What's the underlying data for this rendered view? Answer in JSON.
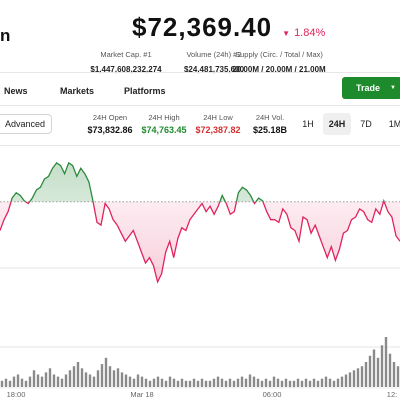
{
  "header": {
    "name_fragment": "n",
    "price": "$72,369.40",
    "change_percent": "1.84%",
    "change_direction": "down",
    "change_color": "#e0245e"
  },
  "stats": [
    {
      "label": "Market Cap. #1",
      "value": "$1,447,608,232,274"
    },
    {
      "label": "Volume (24h) #2",
      "value": "$24,481,735,600"
    },
    {
      "label": "Supply (Circ. / Total / Max)",
      "value": "20.00M / 20.00M / 21.00M"
    }
  ],
  "tabs": [
    "News",
    "Markets",
    "Platforms"
  ],
  "trade_button": {
    "label": "Trade",
    "color": "#1d8a2c"
  },
  "advanced_button": "Advanced",
  "ohl": [
    {
      "label": "24H Open",
      "value": "$73,832.86",
      "color": "#111111"
    },
    {
      "label": "24H High",
      "value": "$74,763.45",
      "color": "#1d8a2c"
    },
    {
      "label": "24H Low",
      "value": "$72,387.82",
      "color": "#d32f2f"
    },
    {
      "label": "24H Vol.",
      "value": "$25.18B",
      "color": "#111111"
    }
  ],
  "ranges": [
    {
      "label": "1H",
      "active": false
    },
    {
      "label": "24H",
      "active": true
    },
    {
      "label": "7D",
      "active": false
    },
    {
      "label": "1M",
      "active": false
    }
  ],
  "chart_data": {
    "type": "line",
    "baseline": 73832.86,
    "ylim": [
      72200,
      74900
    ],
    "up_color": "#2e8b3e",
    "down_color": "#e0245e",
    "x_tick_labels": [
      "18:00",
      "Mar 18",
      "06:00",
      "12:"
    ],
    "price": [
      73300,
      73500,
      73650,
      73900,
      74000,
      73950,
      73850,
      73800,
      73900,
      74050,
      74100,
      74250,
      74300,
      74450,
      74550,
      74500,
      74350,
      74550,
      74500,
      74300,
      74450,
      74350,
      74200,
      73850,
      73450,
      73400,
      73800,
      73700,
      73500,
      73400,
      73250,
      73100,
      73200,
      73300,
      73100,
      72900,
      72700,
      72800,
      72650,
      72350,
      72500,
      72900,
      73100,
      72800,
      73150,
      73350,
      73300,
      73500,
      73600,
      73700,
      73800,
      73650,
      73750,
      73600,
      73750,
      73950,
      73800,
      73600,
      73650,
      74000,
      74100,
      74050,
      73950,
      73800,
      73900,
      73850,
      73650,
      73500,
      73500,
      73450,
      73700,
      73600,
      73350,
      73300,
      73100,
      73550,
      73500,
      73250,
      73400,
      73200,
      73000,
      72800,
      73000,
      72750,
      72950,
      73250,
      73300,
      73500,
      73550,
      73700,
      73650,
      73500,
      73450,
      73700,
      73600,
      73850,
      73650,
      73550,
      73200,
      73100
    ],
    "volume": [
      3,
      4,
      3,
      5,
      6,
      4,
      3,
      5,
      8,
      6,
      5,
      7,
      9,
      6,
      5,
      4,
      6,
      8,
      10,
      12,
      9,
      7,
      6,
      5,
      8,
      11,
      14,
      10,
      8,
      9,
      7,
      6,
      5,
      4,
      6,
      5,
      4,
      3,
      4,
      5,
      4,
      3,
      5,
      4,
      3,
      4,
      3,
      3,
      4,
      3,
      4,
      3,
      3,
      4,
      5,
      4,
      3,
      4,
      3,
      4,
      5,
      4,
      6,
      5,
      4,
      3,
      4,
      3,
      5,
      4,
      3,
      4,
      3,
      3,
      4,
      3,
      4,
      3,
      4,
      3,
      4,
      5,
      4,
      3,
      4,
      5,
      6,
      7,
      8,
      9,
      10,
      12,
      15,
      18,
      14,
      20,
      24,
      16,
      12,
      10
    ]
  }
}
